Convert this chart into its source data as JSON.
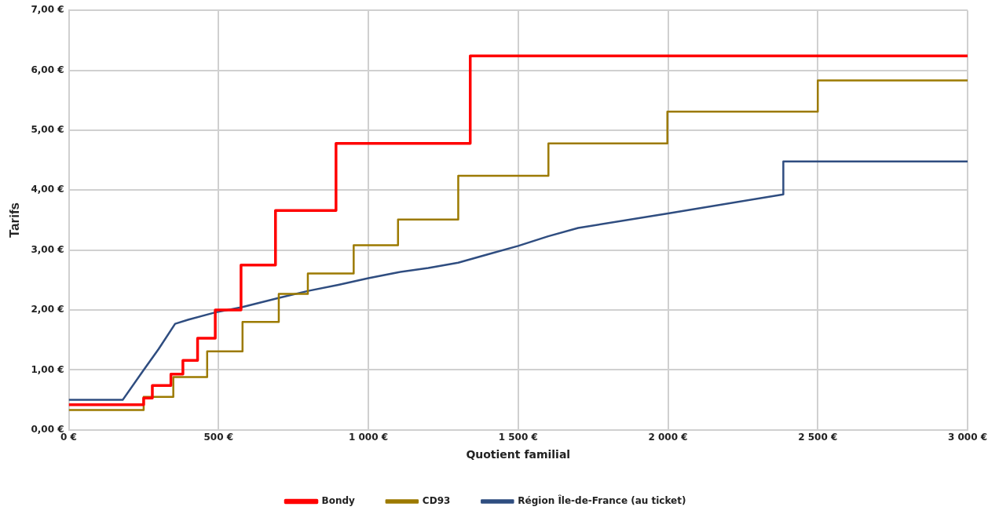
{
  "chart_data": {
    "type": "step",
    "xlabel": "Quotient familial",
    "ylabel": "Tarifs",
    "xlim": [
      0,
      3000
    ],
    "xticks": [
      {
        "value": 0,
        "label": "0 €"
      },
      {
        "value": 500,
        "label": "500 €"
      },
      {
        "value": 1000,
        "label": "1 000 €"
      },
      {
        "value": 1500,
        "label": "1 500 €"
      },
      {
        "value": 2000,
        "label": "2 000 €"
      },
      {
        "value": 2500,
        "label": "2 500 €"
      },
      {
        "value": 3000,
        "label": "3 000 €"
      }
    ],
    "ylim": [
      0,
      7
    ],
    "yticks": [
      {
        "value": 0,
        "label": "0,00 €"
      },
      {
        "value": 1,
        "label": "1,00 €"
      },
      {
        "value": 2,
        "label": "2,00 €"
      },
      {
        "value": 3,
        "label": "3,00 €"
      },
      {
        "value": 4,
        "label": "4,00 €"
      },
      {
        "value": 5,
        "label": "5,00 €"
      },
      {
        "value": 6,
        "label": "6,00 €"
      },
      {
        "value": 7,
        "label": "7,00 €"
      }
    ],
    "grid": true,
    "legend": "bottom",
    "marker": "none",
    "line_style": "solid",
    "series": [
      {
        "name": "Bondy",
        "color": "#ff0000",
        "x": [
          0,
          250,
          279,
          341,
          381,
          430,
          489,
          575,
          690,
          892,
          1340,
          3000
        ],
        "values": [
          0.42,
          0.53,
          0.74,
          0.93,
          1.16,
          1.53,
          2.0,
          2.75,
          3.66,
          4.78,
          6.24,
          6.24
        ]
      },
      {
        "name": "CD93",
        "color": "#9c7a00",
        "x": [
          0,
          250,
          349,
          462,
          580,
          701,
          798,
          951,
          1099,
          1300,
          1601,
          1998,
          2500,
          3000
        ],
        "values": [
          0.33,
          0.55,
          0.88,
          1.31,
          1.8,
          2.27,
          2.61,
          3.08,
          3.51,
          4.24,
          4.78,
          5.31,
          5.83,
          5.83
        ]
      },
      {
        "name": "Région Île-de-France (au ticket)",
        "type": "line",
        "color": "#2f4d80",
        "x": [
          0,
          180,
          250,
          300,
          355,
          400,
          489,
          580,
          700,
          800,
          900,
          1000,
          1100,
          1200,
          1300,
          1400,
          1500,
          1600,
          1700,
          2000,
          2385,
          2385,
          3000
        ],
        "values": [
          0.5,
          0.5,
          1.0,
          1.35,
          1.77,
          1.84,
          1.96,
          2.05,
          2.2,
          2.32,
          2.42,
          2.53,
          2.63,
          2.7,
          2.79,
          2.93,
          3.07,
          3.23,
          3.37,
          3.61,
          3.93,
          4.48,
          4.48
        ]
      }
    ]
  }
}
